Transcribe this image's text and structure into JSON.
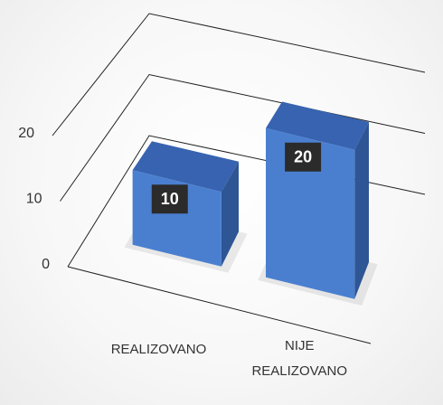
{
  "chart_data": {
    "type": "bar3d",
    "categories": [
      "REALIZOVANO",
      "NIJE REALIZOVANO"
    ],
    "values": [
      10,
      20
    ],
    "color": "#4472c4",
    "ylim": [
      0,
      20
    ],
    "yticks": [
      0,
      10,
      20
    ],
    "grid": true
  }
}
